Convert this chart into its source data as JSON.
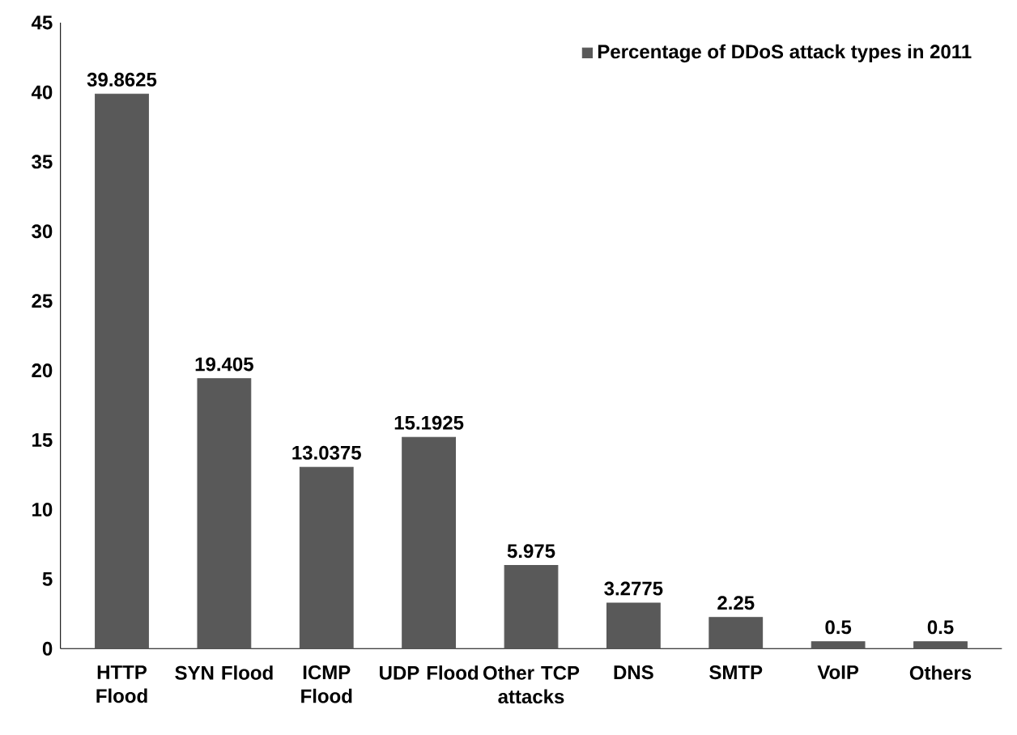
{
  "chart_data": {
    "type": "bar",
    "categories": [
      "HTTP Flood",
      "SYN Flood",
      "ICMP Flood",
      "UDP Flood",
      "Other TCP attacks",
      "DNS",
      "SMTP",
      "VoIP",
      "Others"
    ],
    "series": [
      {
        "name": "Percentage of DDoS attack types in 2011",
        "color": "#595959",
        "values": [
          39.8625,
          19.405,
          13.0375,
          15.1925,
          5.975,
          3.2775,
          2.25,
          0.5,
          0.5
        ]
      }
    ],
    "ylim": [
      0,
      45
    ],
    "yticks": [
      0,
      5,
      10,
      15,
      20,
      25,
      30,
      35,
      40,
      45
    ],
    "data_labels": true,
    "legend": "top right",
    "grid": false
  }
}
